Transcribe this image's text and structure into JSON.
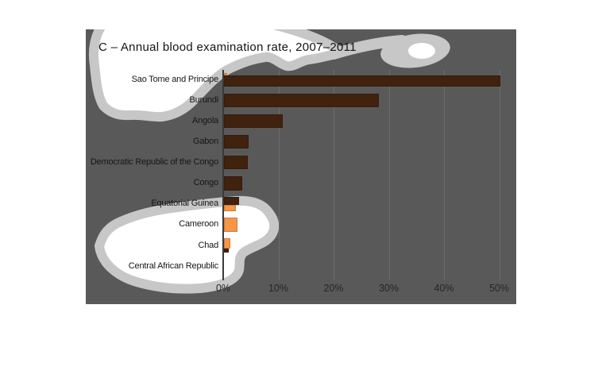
{
  "colors": {
    "panel_bg": "#595959",
    "gridline": "#6C6C6C",
    "axis_line": "#3A3A3A",
    "brown": "#41220E",
    "orange": "#F79646",
    "blob_fill": "#FFFFFF",
    "blob_border": "#C7C7C7",
    "title_text": "#141414",
    "label_text": "#161616",
    "tick_text": "#262626"
  },
  "chart_data": {
    "type": "bar",
    "orientation": "horizontal",
    "title": "C – Annual blood examination rate, 2007–2011",
    "x_axis": {
      "ticks": [
        "0%",
        "10%",
        "20%",
        "30%",
        "40%",
        "50%"
      ],
      "tick_values": [
        0,
        10,
        20,
        30,
        40,
        50
      ],
      "min": 0,
      "max": 52,
      "grid": true
    },
    "categories": [
      "Sao Tome and Principe",
      "Burundi",
      "Angola",
      "Gabon",
      "Democratic Republic of the Congo",
      "Congo",
      "Equatorial Guinea",
      "Cameroon",
      "Chad",
      "Central African Republic"
    ],
    "rows": [
      {
        "label": "Sao Tome and Principe",
        "segments": [
          {
            "color": "orange",
            "value": 0.6,
            "t": 0,
            "h": 0.18
          },
          {
            "color": "brown",
            "value": 50,
            "t": 0.18,
            "h": 0.82
          }
        ]
      },
      {
        "label": "Burundi",
        "segments": [
          {
            "color": "brown",
            "value": 28,
            "t": 0,
            "h": 1
          }
        ]
      },
      {
        "label": "Angola",
        "segments": [
          {
            "color": "brown",
            "value": 10.7,
            "t": 0,
            "h": 1
          }
        ]
      },
      {
        "label": "Gabon",
        "segments": [
          {
            "color": "brown",
            "value": 4.4,
            "t": 0,
            "h": 1
          }
        ]
      },
      {
        "label": "Democratic Republic of the Congo",
        "segments": [
          {
            "color": "brown",
            "value": 4.3,
            "t": 0,
            "h": 1
          }
        ]
      },
      {
        "label": "Congo",
        "segments": [
          {
            "color": "brown",
            "value": 3.3,
            "t": 0,
            "h": 1
          }
        ]
      },
      {
        "label": "Equatorial Guinea",
        "segments": [
          {
            "color": "brown",
            "value": 2.7,
            "t": 0,
            "h": 0.55
          },
          {
            "color": "orange",
            "value": 2.2,
            "t": 0.55,
            "h": 0.45
          }
        ]
      },
      {
        "label": "Cameroon",
        "segments": [
          {
            "color": "orange",
            "value": 2.4,
            "t": 0,
            "h": 1
          }
        ]
      },
      {
        "label": "Chad",
        "segments": [
          {
            "color": "orange",
            "value": 1.1,
            "t": 0,
            "h": 0.72
          },
          {
            "color": "brown",
            "value": 0.85,
            "t": 0.72,
            "h": 0.28
          }
        ]
      },
      {
        "label": "Central African Republic",
        "segments": []
      }
    ]
  }
}
